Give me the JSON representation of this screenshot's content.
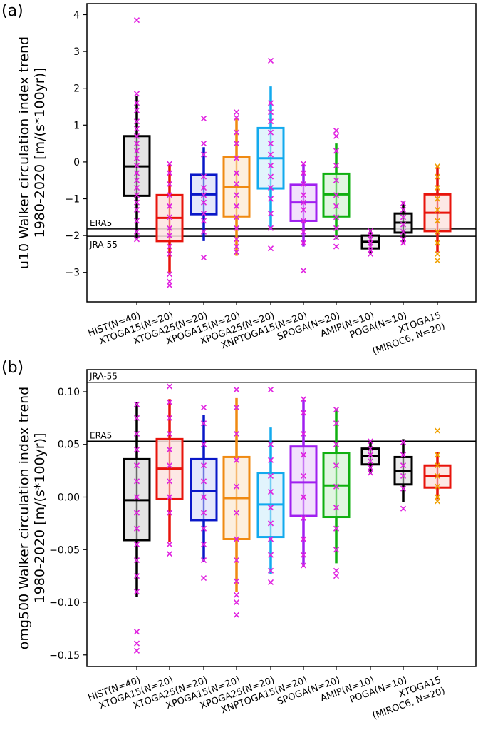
{
  "chart_data": [
    {
      "panel_label": "(a)",
      "type": "box",
      "ylabel": "u10 Walker circulation index trend\n1980-2020 [m/(s*100yr)]",
      "ylim": [
        -3.8,
        4.3
      ],
      "yticks": [
        -3,
        -2,
        -1,
        0,
        1,
        2,
        3,
        4
      ],
      "ytick_labels": [
        "−3",
        "−2",
        "−1",
        "0",
        "1",
        "2",
        "3",
        "4"
      ],
      "references": [
        {
          "name": "ERA5",
          "value": -1.82,
          "label_pos": "above"
        },
        {
          "name": "JRA-55",
          "value": -2.02,
          "label_pos": "below"
        }
      ],
      "categories": [
        "HIST(N=40)",
        "XTOGA15(N=20)",
        "XTOGA25(N=20)",
        "XPOGA15(N=20)",
        "XPOGA25(N=20)",
        "XNPTOGA15(N=20)",
        "SPOGA(N=20)",
        "AMIP(N=10)",
        "POGA(N=10)",
        "XTOGA15\n(MIROC6, N=20)"
      ],
      "series": [
        {
          "name": "HIST",
          "color": "#000000",
          "fill": "#e0e0e0",
          "median": -0.12,
          "q1": -0.92,
          "q3": 0.7,
          "wlo": -2.1,
          "whi": 1.8,
          "points": [
            3.85,
            1.85,
            1.6,
            1.4,
            1.1,
            0.9,
            0.7,
            0.5,
            0.3,
            0.1,
            -0.1,
            -0.3,
            -0.5,
            -0.7,
            -0.9,
            -1.1,
            -1.3,
            -1.6,
            -1.9,
            -2.1
          ]
        },
        {
          "name": "XTOGA15",
          "color": "#e8140c",
          "fill": "#fde4e1",
          "median": -1.52,
          "q1": -2.15,
          "q3": -0.9,
          "wlo": -3.0,
          "whi": -0.05,
          "points": [
            -0.05,
            -0.3,
            -0.6,
            -0.9,
            -1.2,
            -1.5,
            -1.8,
            -2.0,
            -2.3,
            -2.5,
            -3.05,
            -3.25,
            -3.35
          ]
        },
        {
          "name": "XTOGA25",
          "color": "#0a18c8",
          "fill": "#e1e4fa",
          "median": -0.88,
          "q1": -1.42,
          "q3": -0.35,
          "wlo": -2.15,
          "whi": 0.4,
          "points": [
            1.18,
            0.5,
            0.2,
            -0.4,
            -0.7,
            -0.9,
            -1.1,
            -1.4,
            -1.6,
            -1.9,
            -2.6
          ]
        },
        {
          "name": "XPOGA15",
          "color": "#f08a12",
          "fill": "#fdecd8",
          "median": -0.68,
          "q1": -1.48,
          "q3": 0.13,
          "wlo": -2.55,
          "whi": 1.2,
          "points": [
            1.35,
            1.2,
            0.8,
            0.5,
            0.1,
            -0.3,
            -0.6,
            -0.9,
            -1.2,
            -1.5,
            -1.8,
            -2.1,
            -2.3,
            -2.45
          ]
        },
        {
          "name": "XPOGA25",
          "color": "#12aaee",
          "fill": "#ddf2fc",
          "median": 0.1,
          "q1": -0.72,
          "q3": 0.92,
          "wlo": -1.85,
          "whi": 2.05,
          "points": [
            2.75,
            1.6,
            1.35,
            1.1,
            0.8,
            0.5,
            0.2,
            -0.1,
            -0.4,
            -0.7,
            -1.0,
            -1.4,
            -1.8,
            -2.35
          ]
        },
        {
          "name": "XNPTOGA15",
          "color": "#a020f0",
          "fill": "#f0dcfc",
          "median": -1.1,
          "q1": -1.6,
          "q3": -0.62,
          "wlo": -2.3,
          "whi": -0.05,
          "points": [
            -0.05,
            -0.3,
            -0.6,
            -0.9,
            -1.1,
            -1.3,
            -1.6,
            -1.9,
            -2.2,
            -2.95
          ]
        },
        {
          "name": "SPOGA",
          "color": "#10b010",
          "fill": "#dcf5dc",
          "median": -0.88,
          "q1": -1.48,
          "q3": -0.32,
          "wlo": -2.1,
          "whi": 0.5,
          "points": [
            0.85,
            0.7,
            0.3,
            -0.1,
            -0.5,
            -0.9,
            -1.2,
            -1.5,
            -1.8,
            -2.05,
            -2.3
          ]
        },
        {
          "name": "AMIP",
          "color": "#000000",
          "fill": "#e8e8e8",
          "median": -2.17,
          "q1": -2.35,
          "q3": -2.0,
          "wlo": -2.5,
          "whi": -1.85,
          "points": [
            -1.88,
            -2.0,
            -2.1,
            -2.2,
            -2.3,
            -2.4,
            -2.5
          ]
        },
        {
          "name": "POGA",
          "color": "#000000",
          "fill": "#e8e8e8",
          "median": -1.65,
          "q1": -1.92,
          "q3": -1.4,
          "wlo": -2.22,
          "whi": -1.08,
          "points": [
            -1.12,
            -1.3,
            -1.5,
            -1.7,
            -1.9,
            -2.1,
            -2.2
          ]
        },
        {
          "name": "XTOGA15 MIROC6",
          "color": "#e8140c",
          "fill": "#fde4e1",
          "median": -1.38,
          "q1": -1.88,
          "q3": -0.88,
          "wlo": -2.45,
          "whi": -0.1,
          "points": [
            -0.12,
            -0.4,
            -0.7,
            -1.0,
            -1.3,
            -1.6,
            -1.9,
            -2.2,
            -2.5,
            -2.68
          ],
          "marker_color": "#f0a000"
        }
      ]
    },
    {
      "panel_label": "(b)",
      "type": "box",
      "ylabel": "omg500 Walker circulation index trend\n1980-2020 [m/(s*100yr)]",
      "ylim": [
        -0.161,
        0.121
      ],
      "yticks": [
        -0.15,
        -0.1,
        -0.05,
        0.0,
        0.05,
        0.1
      ],
      "ytick_labels": [
        "−0.15",
        "−0.10",
        "−0.05",
        "0.00",
        "0.05",
        "0.10"
      ],
      "references": [
        {
          "name": "JRA-55",
          "value": 0.109,
          "label_pos": "above"
        },
        {
          "name": "ERA5",
          "value": 0.053,
          "label_pos": "above"
        }
      ],
      "categories": [
        "HIST(N=40)",
        "XTOGA15(N=20)",
        "XTOGA25(N=20)",
        "XPOGA15(N=20)",
        "XPOGA25(N=20)",
        "XNPTOGA15(N=20)",
        "SPOGA(N=20)",
        "AMIP(N=10)",
        "POGA(N=10)",
        "XTOGA15\n(MIROC6, N=20)"
      ],
      "series": [
        {
          "name": "HIST",
          "color": "#000000",
          "fill": "#e0e0e0",
          "median": -0.003,
          "q1": -0.041,
          "q3": 0.036,
          "wlo": -0.095,
          "whi": 0.09,
          "points": [
            0.088,
            0.075,
            0.06,
            0.045,
            0.03,
            0.015,
            0.0,
            -0.015,
            -0.03,
            -0.045,
            -0.06,
            -0.075,
            -0.09,
            -0.128,
            -0.139,
            -0.146
          ]
        },
        {
          "name": "XTOGA15",
          "color": "#e8140c",
          "fill": "#fde4e1",
          "median": 0.027,
          "q1": -0.002,
          "q3": 0.055,
          "wlo": -0.043,
          "whi": 0.093,
          "points": [
            0.105,
            0.09,
            0.075,
            0.06,
            0.045,
            0.03,
            0.015,
            0.0,
            -0.015,
            -0.045,
            -0.054
          ]
        },
        {
          "name": "XTOGA25",
          "color": "#0a18c8",
          "fill": "#e1e4fa",
          "median": 0.006,
          "q1": -0.022,
          "q3": 0.036,
          "wlo": -0.062,
          "whi": 0.078,
          "points": [
            0.085,
            0.07,
            0.05,
            0.03,
            0.015,
            0.0,
            -0.015,
            -0.03,
            -0.045,
            -0.06,
            -0.077
          ]
        },
        {
          "name": "XPOGA15",
          "color": "#f08a12",
          "fill": "#fdecd8",
          "median": -0.001,
          "q1": -0.04,
          "q3": 0.038,
          "wlo": -0.09,
          "whi": 0.094,
          "points": [
            0.102,
            0.085,
            0.06,
            0.035,
            0.01,
            -0.015,
            -0.04,
            -0.06,
            -0.08,
            -0.093,
            -0.1,
            -0.112
          ]
        },
        {
          "name": "XPOGA25",
          "color": "#12aaee",
          "fill": "#ddf2fc",
          "median": -0.007,
          "q1": -0.038,
          "q3": 0.023,
          "wlo": -0.073,
          "whi": 0.066,
          "points": [
            0.102,
            0.05,
            0.035,
            0.02,
            0.005,
            -0.01,
            -0.025,
            -0.04,
            -0.055,
            -0.07,
            -0.081
          ]
        },
        {
          "name": "XNPTOGA15",
          "color": "#a020f0",
          "fill": "#f0dcfc",
          "median": 0.014,
          "q1": -0.018,
          "q3": 0.048,
          "wlo": -0.066,
          "whi": 0.092,
          "points": [
            0.093,
            0.08,
            0.06,
            0.04,
            0.02,
            0.0,
            -0.02,
            -0.04,
            -0.055,
            -0.065
          ]
        },
        {
          "name": "SPOGA",
          "color": "#10b010",
          "fill": "#dcf5dc",
          "median": 0.011,
          "q1": -0.019,
          "q3": 0.042,
          "wlo": -0.063,
          "whi": 0.084,
          "points": [
            0.083,
            0.07,
            0.05,
            0.03,
            0.01,
            -0.01,
            -0.03,
            -0.05,
            -0.07,
            -0.075
          ]
        },
        {
          "name": "AMIP",
          "color": "#000000",
          "fill": "#e8e8e8",
          "median": 0.039,
          "q1": 0.031,
          "q3": 0.046,
          "wlo": 0.022,
          "whi": 0.054,
          "points": [
            0.053,
            0.046,
            0.04,
            0.034,
            0.028,
            0.023
          ]
        },
        {
          "name": "POGA",
          "color": "#000000",
          "fill": "#e8e8e8",
          "median": 0.025,
          "q1": 0.012,
          "q3": 0.038,
          "wlo": -0.005,
          "whi": 0.055,
          "points": [
            0.052,
            0.04,
            0.03,
            0.02,
            0.008,
            -0.011
          ]
        },
        {
          "name": "XTOGA15 MIROC6",
          "color": "#e8140c",
          "fill": "#fde4e1",
          "median": 0.02,
          "q1": 0.009,
          "q3": 0.03,
          "wlo": -0.002,
          "whi": 0.043,
          "points": [
            0.063,
            0.04,
            0.03,
            0.02,
            0.01,
            0.0,
            -0.004
          ],
          "marker_color": "#f0a000"
        }
      ]
    }
  ],
  "colors": {
    "marker": "#e020e0",
    "axis": "#000000"
  }
}
